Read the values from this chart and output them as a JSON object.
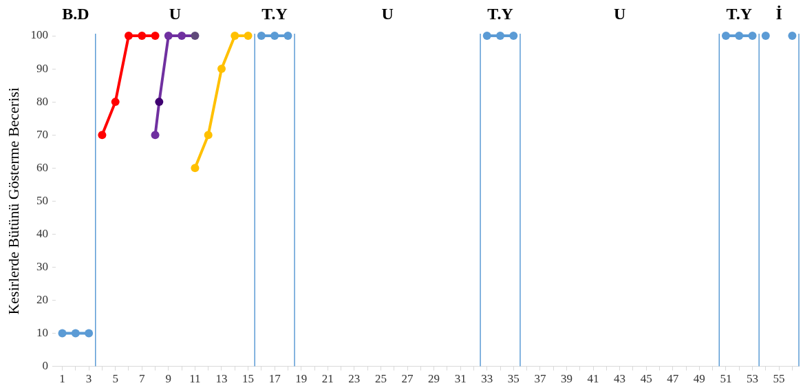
{
  "chart_data": {
    "type": "line",
    "ylabel": "Kesirlerde Bütünü Gösterme Becerisi",
    "xlim": [
      0.5,
      56.5
    ],
    "xticks": [
      1,
      {
        "value": 2,
        "label": null
      },
      3,
      {
        "value": 4,
        "label": null
      },
      5,
      {
        "value": 6,
        "label": null
      },
      7,
      {
        "value": 8,
        "label": null
      },
      9,
      {
        "value": 10,
        "label": null
      },
      11,
      {
        "value": 12,
        "label": null
      },
      13,
      {
        "value": 14,
        "label": null
      },
      15,
      {
        "value": 16,
        "label": null
      },
      17,
      {
        "value": 18,
        "label": null
      },
      19,
      {
        "value": 20,
        "label": null
      },
      21,
      {
        "value": 22,
        "label": null
      },
      23,
      {
        "value": 24,
        "label": null
      },
      25,
      {
        "value": 26,
        "label": null
      },
      27,
      {
        "value": 28,
        "label": null
      },
      29,
      {
        "value": 30,
        "label": null
      },
      31,
      {
        "value": 32,
        "label": null
      },
      33,
      {
        "value": 34,
        "label": null
      },
      35,
      {
        "value": 36,
        "label": null
      },
      37,
      {
        "value": 38,
        "label": null
      },
      39,
      {
        "value": 40,
        "label": null
      },
      41,
      {
        "value": 42,
        "label": null
      },
      43,
      {
        "value": 44,
        "label": null
      },
      45,
      {
        "value": 46,
        "label": null
      },
      47,
      {
        "value": 48,
        "label": null
      },
      49,
      {
        "value": 50,
        "label": null
      },
      51,
      {
        "value": 52,
        "label": null
      },
      53,
      {
        "value": 54,
        "label": null
      },
      55,
      {
        "value": 56,
        "label": null
      }
    ],
    "ylim": [
      0,
      100
    ],
    "yticks": [
      0,
      10,
      20,
      30,
      40,
      50,
      60,
      70,
      80,
      90,
      100
    ],
    "grid": false,
    "legend": false,
    "marker": "circle",
    "line_style": "solid",
    "series": [
      {
        "color": "#5b9bd5",
        "x": [
          1,
          2,
          3
        ],
        "values": [
          10,
          10,
          10
        ]
      },
      {
        "color": "#ff0000",
        "x": [
          4,
          5,
          6,
          7,
          8
        ],
        "values": [
          70,
          80,
          100,
          100,
          100
        ]
      },
      {
        "color": "#7030a0",
        "colors": [
          "#7030a0",
          "#3f0071",
          "#7030a0",
          "#7030a0",
          "#604a7b"
        ],
        "x": [
          8,
          8.3,
          9,
          10,
          11
        ],
        "values": [
          70,
          80,
          100,
          100,
          100
        ]
      },
      {
        "color": "#ffc000",
        "x": [
          11,
          12,
          13,
          14,
          15
        ],
        "values": [
          60,
          70,
          90,
          100,
          100
        ]
      },
      {
        "color": "#5b9bd5",
        "x": [
          16,
          17,
          18
        ],
        "values": [
          100,
          100,
          100
        ]
      },
      {
        "color": "#5b9bd5",
        "x": [
          33,
          34,
          35
        ],
        "values": [
          100,
          100,
          100
        ]
      },
      {
        "color": "#5b9bd5",
        "x": [
          51,
          52,
          53
        ],
        "values": [
          100,
          100,
          100
        ]
      },
      {
        "color": "#5b9bd5",
        "x": [
          54
        ],
        "values": [
          100
        ]
      },
      {
        "color": "#5b9bd5",
        "x": [
          56
        ],
        "values": [
          100
        ]
      }
    ],
    "ref_lines": [
      {
        "axis": "x",
        "value": 3.5,
        "color": "#5b9bd5"
      },
      {
        "axis": "x",
        "value": 15.5,
        "color": "#5b9bd5"
      },
      {
        "axis": "x",
        "value": 18.5,
        "color": "#5b9bd5"
      },
      {
        "axis": "x",
        "value": 32.5,
        "color": "#5b9bd5"
      },
      {
        "axis": "x",
        "value": 35.5,
        "color": "#5b9bd5"
      },
      {
        "axis": "x",
        "value": 50.5,
        "color": "#5b9bd5"
      },
      {
        "axis": "x",
        "value": 53.5,
        "color": "#5b9bd5"
      },
      {
        "axis": "x",
        "value": 56.5,
        "color": "#5b9bd5"
      }
    ],
    "annotations": [
      "B.D",
      "U",
      "T.Y",
      "U",
      "T.Y",
      "U",
      "T.Y",
      "İ"
    ]
  }
}
